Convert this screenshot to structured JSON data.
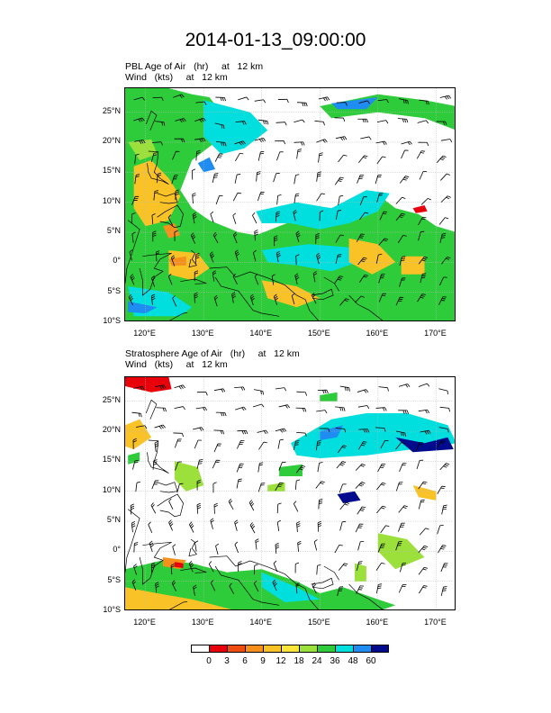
{
  "title": "2014-01-13_09:00:00",
  "panels": [
    {
      "id": "pbl",
      "line1": "PBL Age of Air   (hr)     at   12 km",
      "line2": "Wind   (kts)     at   12 km"
    },
    {
      "id": "strat",
      "line1": "Stratosphere Age of Air   (hr)     at   12 km",
      "line2": "Wind   (kts)     at   12 km"
    }
  ],
  "lat_labels": [
    "25°N",
    "20°N",
    "15°N",
    "10°N",
    "5°N",
    "0°",
    "5°S",
    "10°S"
  ],
  "lon_labels": [
    "120°E",
    "130°E",
    "140°E",
    "150°E",
    "160°E",
    "170°E"
  ],
  "map_extent": {
    "lon": [
      116.5,
      173.5
    ],
    "lat": [
      -10,
      29
    ]
  },
  "colorbar": {
    "labels": [
      "0",
      "3",
      "6",
      "9",
      "12",
      "18",
      "24",
      "36",
      "48",
      "60"
    ],
    "colors": [
      "#ffffff",
      "#e8000b",
      "#f04d10",
      "#f5901d",
      "#f9c226",
      "#fbe53a",
      "#9be03b",
      "#2ecc3a",
      "#00dede",
      "#1e8cf0",
      "#000a8c"
    ]
  },
  "field_colors": {
    "green": "#2ecc3a",
    "cyan": "#00dede",
    "blue": "#1e8cf0",
    "navy": "#000a8c",
    "yellow": "#f9c226",
    "lime": "#9be03b",
    "red": "#e8000b",
    "orange": "#f5901d"
  }
}
